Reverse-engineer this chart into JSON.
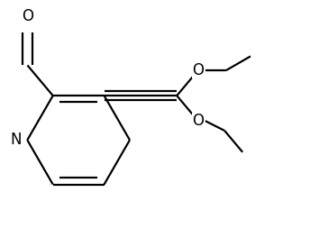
{
  "background_color": "#ffffff",
  "line_color": "#000000",
  "line_width": 1.6,
  "figsize": [
    3.54,
    2.74
  ],
  "dpi": 100,
  "N_label": "N",
  "O_label": "O",
  "font_size": 12
}
